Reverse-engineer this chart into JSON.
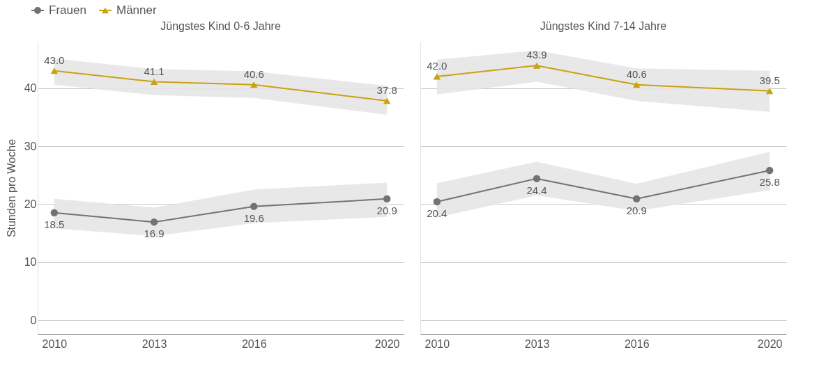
{
  "chart_data": [
    {
      "type": "line",
      "title": "Jüngstes Kind 0-6 Jahre",
      "ylabel": "Stunden pro Woche",
      "x": [
        2010,
        2013,
        2016,
        2020
      ],
      "xlim": [
        2009.5,
        2020.5
      ],
      "xticks": [
        2010,
        2013,
        2016,
        2020
      ],
      "ylim": [
        -2.4,
        48
      ],
      "yticks": [
        0,
        10,
        20,
        30,
        40
      ],
      "grid": "y",
      "legend": "top left",
      "series": [
        {
          "name": "Frauen",
          "color": "#737373",
          "marker": "circle",
          "values": [
            18.5,
            16.9,
            19.6,
            20.9
          ],
          "value_labels": [
            "18.5",
            "16.9",
            "19.6",
            "20.9"
          ],
          "lower": [
            15.8,
            14.5,
            16.7,
            17.8
          ],
          "upper": [
            20.9,
            19.4,
            22.5,
            23.7
          ]
        },
        {
          "name": "Männer",
          "color": "#c9a20f",
          "marker": "triangle",
          "values": [
            43.0,
            41.1,
            40.6,
            37.8
          ],
          "value_labels": [
            "43.0",
            "41.1",
            "40.6",
            "37.8"
          ],
          "lower": [
            40.6,
            38.8,
            38.3,
            35.4
          ],
          "upper": [
            45.1,
            43.3,
            42.9,
            40.4
          ]
        }
      ]
    },
    {
      "type": "line",
      "title": "Jüngstes Kind 7-14 Jahre",
      "x": [
        2010,
        2013,
        2016,
        2020
      ],
      "xlim": [
        2009.5,
        2020.5
      ],
      "xticks": [
        2010,
        2013,
        2016,
        2020
      ],
      "ylim": [
        -2.4,
        48
      ],
      "yticks": [
        0,
        10,
        20,
        30,
        40
      ],
      "grid": "y",
      "tick_labels": "x",
      "series": [
        {
          "color": "#737373",
          "marker": "circle",
          "values": [
            20.4,
            24.4,
            20.9,
            25.8
          ],
          "value_labels": [
            "20.4",
            "24.4",
            "20.9",
            "25.8"
          ],
          "lower": [
            17.7,
            21.5,
            18.8,
            22.4
          ],
          "upper": [
            23.6,
            27.3,
            23.5,
            29.0
          ]
        },
        {
          "color": "#c9a20f",
          "marker": "triangle",
          "values": [
            42.0,
            43.9,
            40.6,
            39.5
          ],
          "value_labels": [
            "42.0",
            "43.9",
            "40.6",
            "39.5"
          ],
          "lower": [
            38.9,
            41.1,
            37.8,
            35.9
          ],
          "upper": [
            44.9,
            46.5,
            43.4,
            43.0
          ]
        }
      ]
    }
  ]
}
